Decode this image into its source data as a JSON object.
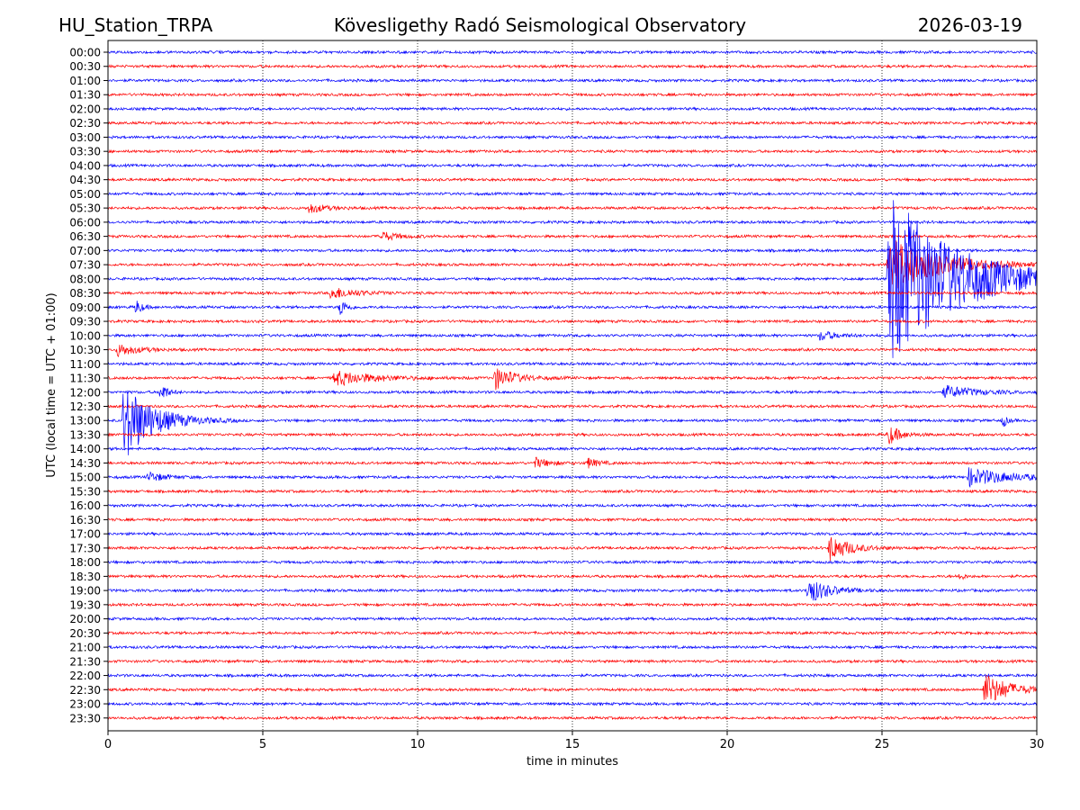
{
  "header": {
    "station": "HU_Station_TRPA",
    "observatory": "Kövesligethy Radó Seismological Observatory",
    "date": "2026-03-19"
  },
  "chart_data": {
    "type": "line",
    "title": "Kövesligethy Radó Seismological Observatory",
    "xlabel": "time in minutes",
    "ylabel": "UTC (local time = UTC + 01:00)",
    "xlim": [
      0,
      30
    ],
    "x_ticks": [
      0,
      5,
      10,
      15,
      20,
      25,
      30
    ],
    "x_gridlines": [
      5,
      10,
      15,
      20,
      25
    ],
    "grid": "vertical dotted",
    "colors": {
      "even_rows": "#0000ff",
      "odd_rows": "#ff0000",
      "axis": "#000000"
    },
    "rows": [
      "00:00",
      "00:30",
      "01:00",
      "01:30",
      "02:00",
      "02:30",
      "03:00",
      "03:30",
      "04:00",
      "04:30",
      "05:00",
      "05:30",
      "06:00",
      "06:30",
      "07:00",
      "07:30",
      "08:00",
      "08:30",
      "09:00",
      "09:30",
      "10:00",
      "10:30",
      "11:00",
      "11:30",
      "12:00",
      "12:30",
      "13:00",
      "13:30",
      "14:00",
      "14:30",
      "15:00",
      "15:30",
      "16:00",
      "16:30",
      "17:00",
      "17:30",
      "18:00",
      "18:30",
      "19:00",
      "19:30",
      "20:00",
      "20:30",
      "21:00",
      "21:30",
      "22:00",
      "22:30",
      "23:00",
      "23:30"
    ],
    "events": [
      {
        "row": 11,
        "minute": 6.5,
        "amplitude": 0.4,
        "duration": 0.8
      },
      {
        "row": 13,
        "minute": 8.8,
        "amplitude": 0.4,
        "duration": 0.8
      },
      {
        "row": 16,
        "minute": 25.2,
        "amplitude": 7.0,
        "duration": 3.5
      },
      {
        "row": 15,
        "minute": 25.2,
        "amplitude": 2.2,
        "duration": 2.5
      },
      {
        "row": 17,
        "minute": 7.2,
        "amplitude": 0.5,
        "duration": 1.2
      },
      {
        "row": 18,
        "minute": 7.5,
        "amplitude": 0.8,
        "duration": 0.3
      },
      {
        "row": 18,
        "minute": 0.9,
        "amplitude": 0.6,
        "duration": 0.3
      },
      {
        "row": 20,
        "minute": 23.0,
        "amplitude": 0.4,
        "duration": 0.8
      },
      {
        "row": 21,
        "minute": 0.3,
        "amplitude": 0.5,
        "duration": 1.0
      },
      {
        "row": 23,
        "minute": 7.3,
        "amplitude": 0.6,
        "duration": 2.0
      },
      {
        "row": 23,
        "minute": 12.5,
        "amplitude": 0.9,
        "duration": 1.0
      },
      {
        "row": 24,
        "minute": 1.7,
        "amplitude": 0.9,
        "duration": 0.3
      },
      {
        "row": 24,
        "minute": 27.0,
        "amplitude": 0.5,
        "duration": 1.6
      },
      {
        "row": 26,
        "minute": 0.5,
        "amplitude": 3.2,
        "duration": 1.5
      },
      {
        "row": 26,
        "minute": 28.9,
        "amplitude": 0.6,
        "duration": 0.2
      },
      {
        "row": 27,
        "minute": 25.2,
        "amplitude": 0.8,
        "duration": 0.6
      },
      {
        "row": 29,
        "minute": 13.8,
        "amplitude": 0.4,
        "duration": 0.7
      },
      {
        "row": 29,
        "minute": 15.5,
        "amplitude": 0.4,
        "duration": 0.5
      },
      {
        "row": 30,
        "minute": 1.3,
        "amplitude": 0.4,
        "duration": 0.8
      },
      {
        "row": 30,
        "minute": 27.8,
        "amplitude": 0.7,
        "duration": 2.2
      },
      {
        "row": 35,
        "minute": 23.3,
        "amplitude": 1.1,
        "duration": 1.0
      },
      {
        "row": 37,
        "minute": 27.5,
        "amplitude": 0.4,
        "duration": 0.2
      },
      {
        "row": 38,
        "minute": 22.6,
        "amplitude": 1.1,
        "duration": 1.0
      },
      {
        "row": 45,
        "minute": 28.3,
        "amplitude": 1.3,
        "duration": 1.3
      }
    ]
  }
}
